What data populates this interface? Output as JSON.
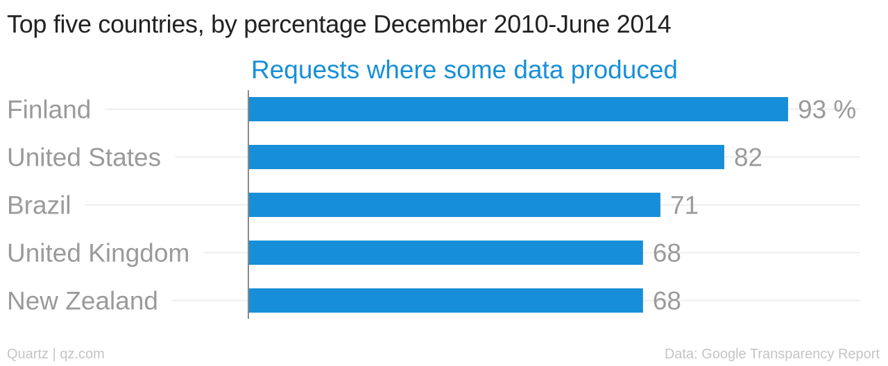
{
  "chart_data": {
    "type": "bar",
    "orientation": "horizontal",
    "title": "Top five countries, by percentage December 2010-June 2014",
    "series": [
      {
        "name": "Requests where some data produced",
        "color": "#178fd8",
        "values": [
          93,
          82,
          71,
          68,
          68
        ],
        "value_labels": [
          "93 %",
          "82",
          "71",
          "68",
          "68"
        ]
      }
    ],
    "categories": [
      "Finland",
      "United States",
      "Brazil",
      "United Kingdom",
      "New Zealand"
    ],
    "xlim": [
      0,
      100
    ],
    "grid": true,
    "legend": "top"
  },
  "footer": {
    "source_left": "Quartz | qz.com",
    "source_right": "Data: Google Transparency Report"
  },
  "colors": {
    "bar": "#178fd8",
    "legend_text": "#178fd8",
    "label_text": "#9a9a9a",
    "gridline": "#eeeeee",
    "axis": "#888888"
  }
}
